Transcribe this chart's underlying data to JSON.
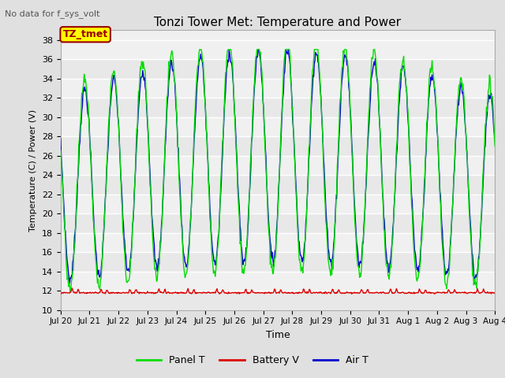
{
  "title": "Tonzi Tower Met: Temperature and Power",
  "subtitle": "No data for f_sys_volt",
  "xlabel": "Time",
  "ylabel": "Temperature (C) / Power (V)",
  "ylim": [
    10,
    39
  ],
  "yticks": [
    10,
    12,
    14,
    16,
    18,
    20,
    22,
    24,
    26,
    28,
    30,
    32,
    34,
    36,
    38
  ],
  "panel_color": "#00dd00",
  "battery_color": "#dd0000",
  "air_color": "#0000cc",
  "bg_color": "#e0e0e0",
  "plot_bg_alt1": "#e8e8e8",
  "plot_bg_alt2": "#f0f0f0",
  "grid_color": "#ffffff",
  "annotation_text": "TZ_tmet",
  "annotation_bg": "#ffff00",
  "annotation_border": "#990000",
  "legend_items": [
    "Panel T",
    "Battery V",
    "Air T"
  ],
  "legend_colors": [
    "#00dd00",
    "#dd0000",
    "#0000cc"
  ],
  "title_fontsize": 11,
  "subtitle_fontsize": 8,
  "ylabel_fontsize": 8,
  "xlabel_fontsize": 9,
  "tick_fontsize": 8
}
